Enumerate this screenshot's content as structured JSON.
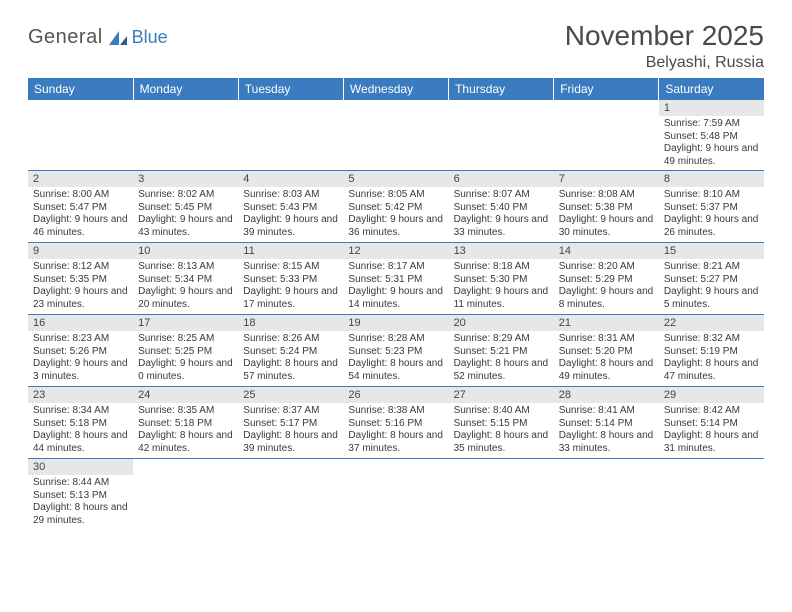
{
  "logo": {
    "general": "General",
    "blue": "Blue"
  },
  "title": "November 2025",
  "location": "Belyashi, Russia",
  "colors": {
    "header_bg": "#3b7bbf",
    "header_text": "#ffffff",
    "daynum_bg": "#e7e7e7",
    "border": "#3b7bbf",
    "text": "#3a3a3a"
  },
  "weekdays": [
    "Sunday",
    "Monday",
    "Tuesday",
    "Wednesday",
    "Thursday",
    "Friday",
    "Saturday"
  ],
  "weeks": [
    [
      null,
      null,
      null,
      null,
      null,
      null,
      {
        "n": "1",
        "sr": "Sunrise: 7:59 AM",
        "ss": "Sunset: 5:48 PM",
        "dl": "Daylight: 9 hours and 49 minutes."
      }
    ],
    [
      {
        "n": "2",
        "sr": "Sunrise: 8:00 AM",
        "ss": "Sunset: 5:47 PM",
        "dl": "Daylight: 9 hours and 46 minutes."
      },
      {
        "n": "3",
        "sr": "Sunrise: 8:02 AM",
        "ss": "Sunset: 5:45 PM",
        "dl": "Daylight: 9 hours and 43 minutes."
      },
      {
        "n": "4",
        "sr": "Sunrise: 8:03 AM",
        "ss": "Sunset: 5:43 PM",
        "dl": "Daylight: 9 hours and 39 minutes."
      },
      {
        "n": "5",
        "sr": "Sunrise: 8:05 AM",
        "ss": "Sunset: 5:42 PM",
        "dl": "Daylight: 9 hours and 36 minutes."
      },
      {
        "n": "6",
        "sr": "Sunrise: 8:07 AM",
        "ss": "Sunset: 5:40 PM",
        "dl": "Daylight: 9 hours and 33 minutes."
      },
      {
        "n": "7",
        "sr": "Sunrise: 8:08 AM",
        "ss": "Sunset: 5:38 PM",
        "dl": "Daylight: 9 hours and 30 minutes."
      },
      {
        "n": "8",
        "sr": "Sunrise: 8:10 AM",
        "ss": "Sunset: 5:37 PM",
        "dl": "Daylight: 9 hours and 26 minutes."
      }
    ],
    [
      {
        "n": "9",
        "sr": "Sunrise: 8:12 AM",
        "ss": "Sunset: 5:35 PM",
        "dl": "Daylight: 9 hours and 23 minutes."
      },
      {
        "n": "10",
        "sr": "Sunrise: 8:13 AM",
        "ss": "Sunset: 5:34 PM",
        "dl": "Daylight: 9 hours and 20 minutes."
      },
      {
        "n": "11",
        "sr": "Sunrise: 8:15 AM",
        "ss": "Sunset: 5:33 PM",
        "dl": "Daylight: 9 hours and 17 minutes."
      },
      {
        "n": "12",
        "sr": "Sunrise: 8:17 AM",
        "ss": "Sunset: 5:31 PM",
        "dl": "Daylight: 9 hours and 14 minutes."
      },
      {
        "n": "13",
        "sr": "Sunrise: 8:18 AM",
        "ss": "Sunset: 5:30 PM",
        "dl": "Daylight: 9 hours and 11 minutes."
      },
      {
        "n": "14",
        "sr": "Sunrise: 8:20 AM",
        "ss": "Sunset: 5:29 PM",
        "dl": "Daylight: 9 hours and 8 minutes."
      },
      {
        "n": "15",
        "sr": "Sunrise: 8:21 AM",
        "ss": "Sunset: 5:27 PM",
        "dl": "Daylight: 9 hours and 5 minutes."
      }
    ],
    [
      {
        "n": "16",
        "sr": "Sunrise: 8:23 AM",
        "ss": "Sunset: 5:26 PM",
        "dl": "Daylight: 9 hours and 3 minutes."
      },
      {
        "n": "17",
        "sr": "Sunrise: 8:25 AM",
        "ss": "Sunset: 5:25 PM",
        "dl": "Daylight: 9 hours and 0 minutes."
      },
      {
        "n": "18",
        "sr": "Sunrise: 8:26 AM",
        "ss": "Sunset: 5:24 PM",
        "dl": "Daylight: 8 hours and 57 minutes."
      },
      {
        "n": "19",
        "sr": "Sunrise: 8:28 AM",
        "ss": "Sunset: 5:23 PM",
        "dl": "Daylight: 8 hours and 54 minutes."
      },
      {
        "n": "20",
        "sr": "Sunrise: 8:29 AM",
        "ss": "Sunset: 5:21 PM",
        "dl": "Daylight: 8 hours and 52 minutes."
      },
      {
        "n": "21",
        "sr": "Sunrise: 8:31 AM",
        "ss": "Sunset: 5:20 PM",
        "dl": "Daylight: 8 hours and 49 minutes."
      },
      {
        "n": "22",
        "sr": "Sunrise: 8:32 AM",
        "ss": "Sunset: 5:19 PM",
        "dl": "Daylight: 8 hours and 47 minutes."
      }
    ],
    [
      {
        "n": "23",
        "sr": "Sunrise: 8:34 AM",
        "ss": "Sunset: 5:18 PM",
        "dl": "Daylight: 8 hours and 44 minutes."
      },
      {
        "n": "24",
        "sr": "Sunrise: 8:35 AM",
        "ss": "Sunset: 5:18 PM",
        "dl": "Daylight: 8 hours and 42 minutes."
      },
      {
        "n": "25",
        "sr": "Sunrise: 8:37 AM",
        "ss": "Sunset: 5:17 PM",
        "dl": "Daylight: 8 hours and 39 minutes."
      },
      {
        "n": "26",
        "sr": "Sunrise: 8:38 AM",
        "ss": "Sunset: 5:16 PM",
        "dl": "Daylight: 8 hours and 37 minutes."
      },
      {
        "n": "27",
        "sr": "Sunrise: 8:40 AM",
        "ss": "Sunset: 5:15 PM",
        "dl": "Daylight: 8 hours and 35 minutes."
      },
      {
        "n": "28",
        "sr": "Sunrise: 8:41 AM",
        "ss": "Sunset: 5:14 PM",
        "dl": "Daylight: 8 hours and 33 minutes."
      },
      {
        "n": "29",
        "sr": "Sunrise: 8:42 AM",
        "ss": "Sunset: 5:14 PM",
        "dl": "Daylight: 8 hours and 31 minutes."
      }
    ],
    [
      {
        "n": "30",
        "sr": "Sunrise: 8:44 AM",
        "ss": "Sunset: 5:13 PM",
        "dl": "Daylight: 8 hours and 29 minutes."
      },
      null,
      null,
      null,
      null,
      null,
      null
    ]
  ]
}
